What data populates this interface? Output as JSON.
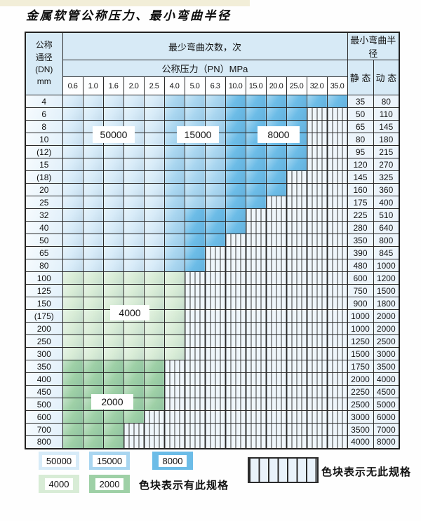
{
  "title": "金属软管公称压力、最小弯曲半径",
  "colors": {
    "c50000": "#d7ebf8",
    "c15000": "#a9d6f0",
    "c8000": "#6cbce7",
    "c4000": "#d8ecd6",
    "c2000": "#9ed0a6",
    "hatch_bg": "#eff6fb",
    "header_bg": "#d7eaf6",
    "cream": "#f2eed8"
  },
  "table": {
    "header": {
      "dn_label_lines": [
        "公称",
        "通径",
        "(DN)",
        "mm"
      ],
      "bend_cycles_label": "最少弯曲次数，次",
      "pressure_label": "公称压力（PN）MPa",
      "pressures": [
        "0.6",
        "1.0",
        "1.6",
        "2.0",
        "2.5",
        "4.0",
        "5.0",
        "6.3",
        "10.0",
        "15.0",
        "20.0",
        "25.0",
        "32.0",
        "35.0"
      ],
      "radius_label": "最小弯曲半径",
      "static_label": "静 态",
      "dynamic_label": "动 态"
    },
    "shade_legend_note": "s1=50000次 s2=15000次 s3=8000次 s4=4000次 s5=2000次, 其余为无此规格(斜线格)",
    "rows": [
      {
        "dn": "4",
        "bands": [
          [
            "s1",
            5
          ],
          [
            "s2",
            3
          ],
          [
            "s3",
            6
          ]
        ],
        "static": "35",
        "dynamic": "80"
      },
      {
        "dn": "6",
        "bands": [
          [
            "s1",
            5
          ],
          [
            "s2",
            3
          ],
          [
            "s3",
            4
          ]
        ],
        "static": "50",
        "dynamic": "110"
      },
      {
        "dn": "8",
        "bands": [
          [
            "s1",
            5
          ],
          [
            "s2",
            3
          ],
          [
            "s3",
            4
          ]
        ],
        "static": "65",
        "dynamic": "145"
      },
      {
        "dn": "10",
        "bands": [
          [
            "s1",
            5
          ],
          [
            "s2",
            3
          ],
          [
            "s3",
            4
          ]
        ],
        "static": "80",
        "dynamic": "180"
      },
      {
        "dn": "(12)",
        "bands": [
          [
            "s1",
            5
          ],
          [
            "s2",
            3
          ],
          [
            "s3",
            4
          ]
        ],
        "static": "95",
        "dynamic": "215"
      },
      {
        "dn": "15",
        "bands": [
          [
            "s1",
            5
          ],
          [
            "s2",
            3
          ],
          [
            "s3",
            4
          ]
        ],
        "static": "120",
        "dynamic": "270"
      },
      {
        "dn": "(18)",
        "bands": [
          [
            "s1",
            5
          ],
          [
            "s2",
            3
          ],
          [
            "s3",
            3
          ]
        ],
        "static": "145",
        "dynamic": "325"
      },
      {
        "dn": "20",
        "bands": [
          [
            "s1",
            5
          ],
          [
            "s2",
            3
          ],
          [
            "s3",
            3
          ]
        ],
        "static": "160",
        "dynamic": "360"
      },
      {
        "dn": "25",
        "bands": [
          [
            "s1",
            5
          ],
          [
            "s2",
            3
          ],
          [
            "s3",
            2
          ]
        ],
        "static": "175",
        "dynamic": "400"
      },
      {
        "dn": "32",
        "bands": [
          [
            "s1",
            5
          ],
          [
            "s2",
            1
          ],
          [
            "s3",
            3
          ]
        ],
        "static": "225",
        "dynamic": "510"
      },
      {
        "dn": "40",
        "bands": [
          [
            "s1",
            5
          ],
          [
            "s2",
            1
          ],
          [
            "s3",
            3
          ]
        ],
        "static": "280",
        "dynamic": "640"
      },
      {
        "dn": "50",
        "bands": [
          [
            "s1",
            5
          ],
          [
            "s2",
            1
          ],
          [
            "s3",
            2
          ]
        ],
        "static": "350",
        "dynamic": "800"
      },
      {
        "dn": "65",
        "bands": [
          [
            "s1",
            5
          ],
          [
            "s2",
            1
          ],
          [
            "s3",
            1
          ]
        ],
        "static": "390",
        "dynamic": "845"
      },
      {
        "dn": "80",
        "bands": [
          [
            "s1",
            5
          ],
          [
            "s2",
            1
          ],
          [
            "s3",
            1
          ]
        ],
        "static": "480",
        "dynamic": "1000"
      },
      {
        "dn": "100",
        "bands": [
          [
            "s4",
            6
          ]
        ],
        "static": "600",
        "dynamic": "1200"
      },
      {
        "dn": "125",
        "bands": [
          [
            "s4",
            6
          ]
        ],
        "static": "750",
        "dynamic": "1500"
      },
      {
        "dn": "150",
        "bands": [
          [
            "s4",
            6
          ]
        ],
        "static": "900",
        "dynamic": "1800"
      },
      {
        "dn": "(175)",
        "bands": [
          [
            "s4",
            6
          ]
        ],
        "static": "1000",
        "dynamic": "2000"
      },
      {
        "dn": "200",
        "bands": [
          [
            "s4",
            6
          ]
        ],
        "static": "1000",
        "dynamic": "2000"
      },
      {
        "dn": "250",
        "bands": [
          [
            "s4",
            6
          ]
        ],
        "static": "1250",
        "dynamic": "2500"
      },
      {
        "dn": "300",
        "bands": [
          [
            "s4",
            6
          ]
        ],
        "static": "1500",
        "dynamic": "3000"
      },
      {
        "dn": "350",
        "bands": [
          [
            "s5",
            5
          ]
        ],
        "static": "1750",
        "dynamic": "3500"
      },
      {
        "dn": "400",
        "bands": [
          [
            "s5",
            5
          ]
        ],
        "static": "2000",
        "dynamic": "4000"
      },
      {
        "dn": "450",
        "bands": [
          [
            "s5",
            5
          ]
        ],
        "static": "2250",
        "dynamic": "4500"
      },
      {
        "dn": "500",
        "bands": [
          [
            "s5",
            5
          ]
        ],
        "static": "2500",
        "dynamic": "5000"
      },
      {
        "dn": "600",
        "bands": [
          [
            "s5",
            4
          ]
        ],
        "static": "3000",
        "dynamic": "6000"
      },
      {
        "dn": "700",
        "bands": [
          [
            "s5",
            3
          ]
        ],
        "static": "3500",
        "dynamic": "7000"
      },
      {
        "dn": "800",
        "bands": [
          [
            "s5",
            3
          ]
        ],
        "static": "4000",
        "dynamic": "8000"
      }
    ]
  },
  "overlays": [
    {
      "value": "50000"
    },
    {
      "value": "15000"
    },
    {
      "value": "8000"
    },
    {
      "value": "4000"
    },
    {
      "value": "2000"
    }
  ],
  "legend": {
    "chips": [
      {
        "value": "50000"
      },
      {
        "value": "15000"
      },
      {
        "value": "8000"
      },
      {
        "value": "4000"
      },
      {
        "value": "2000"
      }
    ],
    "has_spec_text": "色块表示有此规格",
    "no_spec_text": "色块表示无此规格"
  }
}
